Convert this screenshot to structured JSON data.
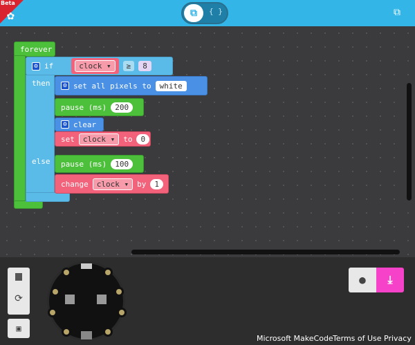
{
  "header": {
    "beta": "Beta",
    "blocks_icon": "puzzle-icon",
    "js_label": "{ }",
    "external_icon": "external-link-icon"
  },
  "blocks": {
    "forever": "forever",
    "if": "if",
    "then": "then",
    "else": "else",
    "cond": {
      "var": "clock",
      "op": "≥",
      "value": "8"
    },
    "set_pixels": {
      "label": "set all pixels to",
      "color": "white"
    },
    "pause1": {
      "label": "pause (ms)",
      "value": "200"
    },
    "clear": "clear",
    "set_var": {
      "label": "set",
      "var": "clock",
      "to": "to",
      "value": "0"
    },
    "pause2": {
      "label": "pause (ms)",
      "value": "100"
    },
    "change": {
      "label": "change",
      "var": "clock",
      "by": "by",
      "value": "1"
    }
  },
  "footer": {
    "links": [
      "Microsoft MakeCode",
      "Terms of Use",
      "Privacy"
    ]
  },
  "colors": {
    "header": "#33b5e8",
    "download": "#f542c8",
    "loop": "#4cbf3b",
    "logic": "#5bbbe8",
    "light": "#4a90e4",
    "variables": "#f2627a"
  }
}
